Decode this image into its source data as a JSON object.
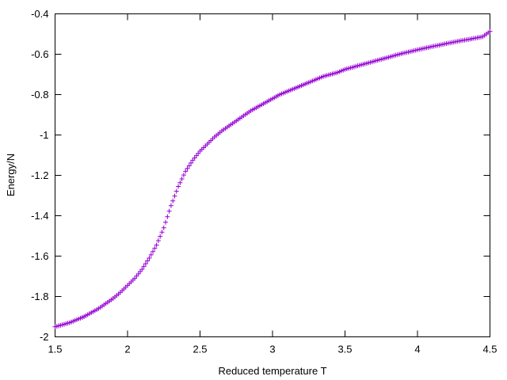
{
  "chart_data": {
    "type": "scatter",
    "title": "",
    "xlabel": "Reduced temperature T",
    "ylabel": "Energy/N",
    "xlim": [
      1.5,
      4.5
    ],
    "ylim": [
      -2.0,
      -0.4
    ],
    "xticks": [
      1.5,
      2,
      2.5,
      3,
      3.5,
      4,
      4.5
    ],
    "xtick_labels": [
      "1.5",
      "2",
      "2.5",
      "3",
      "3.5",
      "4",
      "4.5"
    ],
    "yticks": [
      -2.0,
      -1.8,
      -1.6,
      -1.4,
      -1.2,
      -1.0,
      -0.8,
      -0.6,
      -0.4
    ],
    "ytick_labels": [
      "-2",
      "-1.8",
      "-1.6",
      "-1.4",
      "-1.2",
      "-1",
      "-0.8",
      "-0.6",
      "-0.4"
    ],
    "grid": false,
    "legend": "none",
    "marker": "plus",
    "series": [
      {
        "color": "#9400d3",
        "x": [
          1.5,
          1.55,
          1.6,
          1.65,
          1.7,
          1.75,
          1.8,
          1.85,
          1.9,
          1.95,
          2.0,
          2.05,
          2.1,
          2.15,
          2.2,
          2.25,
          2.3,
          2.35,
          2.4,
          2.45,
          2.5,
          2.55,
          2.6,
          2.65,
          2.7,
          2.75,
          2.8,
          2.85,
          2.9,
          2.95,
          3.0,
          3.05,
          3.1,
          3.15,
          3.2,
          3.25,
          3.3,
          3.35,
          3.4,
          3.45,
          3.5,
          3.55,
          3.6,
          3.65,
          3.7,
          3.75,
          3.8,
          3.85,
          3.9,
          3.95,
          4.0,
          4.05,
          4.1,
          4.15,
          4.2,
          4.25,
          4.3,
          4.35,
          4.4,
          4.45,
          4.5
        ],
        "y": [
          -1.95,
          -1.94,
          -1.93,
          -1.915,
          -1.9,
          -1.88,
          -1.86,
          -1.835,
          -1.81,
          -1.78,
          -1.745,
          -1.71,
          -1.665,
          -1.61,
          -1.545,
          -1.46,
          -1.35,
          -1.255,
          -1.18,
          -1.125,
          -1.08,
          -1.045,
          -1.01,
          -0.98,
          -0.955,
          -0.93,
          -0.905,
          -0.88,
          -0.86,
          -0.84,
          -0.82,
          -0.8,
          -0.785,
          -0.77,
          -0.755,
          -0.74,
          -0.725,
          -0.71,
          -0.7,
          -0.69,
          -0.675,
          -0.665,
          -0.655,
          -0.645,
          -0.635,
          -0.625,
          -0.615,
          -0.605,
          -0.595,
          -0.587,
          -0.578,
          -0.57,
          -0.562,
          -0.555,
          -0.547,
          -0.54,
          -0.533,
          -0.527,
          -0.52,
          -0.513,
          -0.487
        ]
      }
    ]
  }
}
